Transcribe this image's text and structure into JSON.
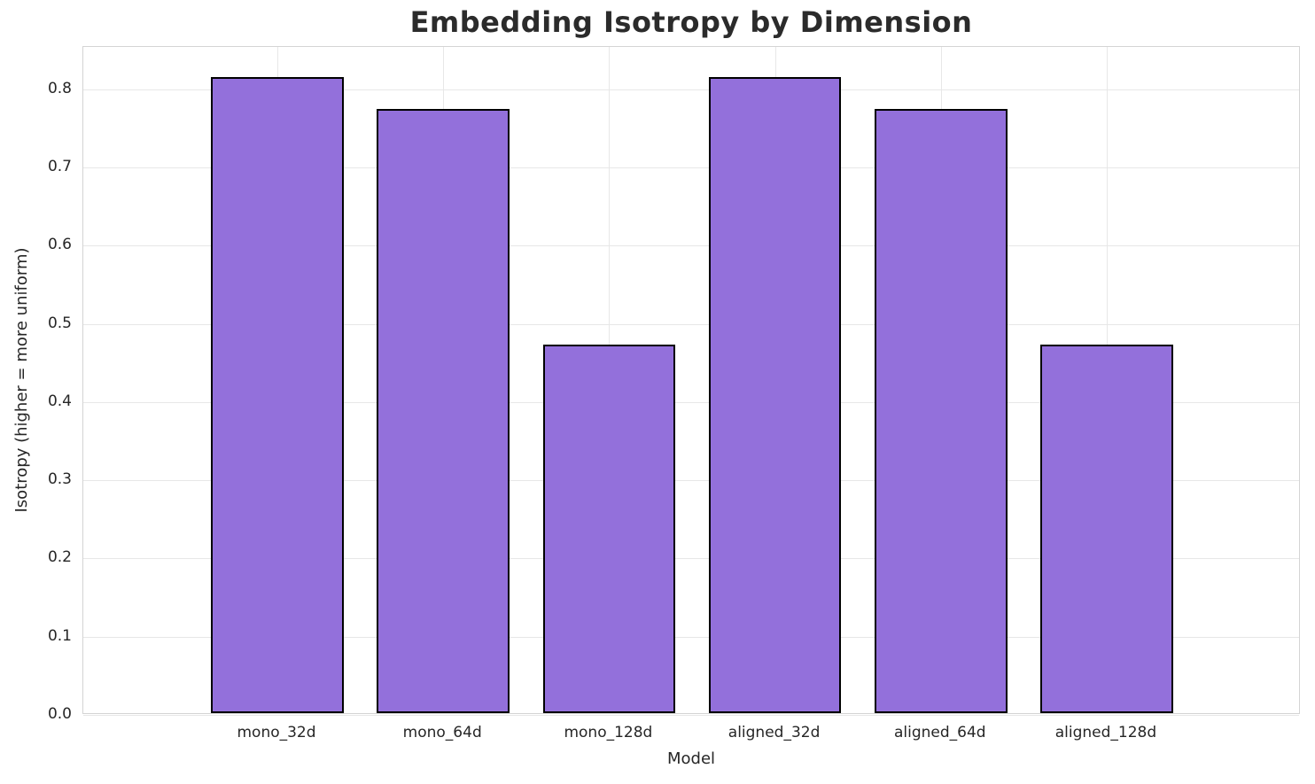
{
  "chart_data": {
    "type": "bar",
    "title": "Embedding Isotropy by Dimension",
    "xlabel": "Model",
    "ylabel": "Isotropy (higher = more uniform)",
    "categories": [
      "mono_32d",
      "mono_64d",
      "mono_128d",
      "aligned_32d",
      "aligned_64d",
      "aligned_128d"
    ],
    "values": [
      0.813,
      0.772,
      0.471,
      0.813,
      0.772,
      0.471
    ],
    "ylim": [
      0,
      0.854
    ],
    "yticks": [
      0.0,
      0.1,
      0.2,
      0.3,
      0.4,
      0.5,
      0.6,
      0.7,
      0.8
    ],
    "ytick_labels": [
      "0.0",
      "0.1",
      "0.2",
      "0.3",
      "0.4",
      "0.5",
      "0.6",
      "0.7",
      "0.8"
    ],
    "grid": true,
    "grid_axes": "both",
    "legend": false,
    "bar_width_frac": 0.8,
    "x_margin_units": 0.67,
    "colors": {
      "bar_fill": "#9370DB",
      "bar_edge": "#000000",
      "grid": "#e7e7e7",
      "spine": "#d4d4d4",
      "text": "#262626",
      "title_text": "#2b2b2b",
      "background": "#ffffff"
    }
  }
}
